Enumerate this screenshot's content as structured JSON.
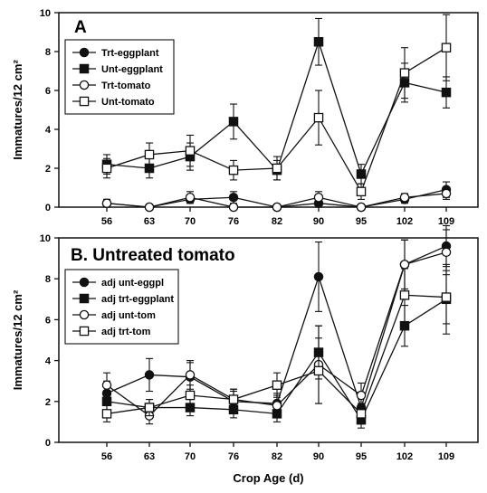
{
  "chart_data": [
    {
      "type": "line",
      "panel_label": "A",
      "ylabel": "Immatures/12 cm²",
      "ylim": [
        0,
        10
      ],
      "yticks": [
        0,
        2,
        4,
        6,
        8,
        10
      ],
      "x": [
        56,
        63,
        70,
        76,
        82,
        90,
        95,
        102,
        109
      ],
      "xtick_labels": [
        "56",
        "63",
        "70",
        "76",
        "82",
        "90",
        "95",
        "102",
        "109"
      ],
      "legend_position": "upper-left",
      "series": [
        {
          "name": "Trt-eggplant",
          "marker": "filled-circle",
          "values": [
            0.2,
            0.0,
            0.4,
            0.5,
            0.0,
            0.2,
            0.0,
            0.4,
            0.9
          ],
          "errors": [
            0.2,
            0.1,
            0.2,
            0.3,
            0.1,
            0.2,
            0.1,
            0.2,
            0.4
          ]
        },
        {
          "name": "Unt-eggplant",
          "marker": "filled-square",
          "values": [
            2.2,
            2.0,
            2.6,
            4.4,
            1.9,
            8.5,
            1.7,
            6.4,
            5.9
          ],
          "errors": [
            0.5,
            0.5,
            0.7,
            0.9,
            0.5,
            1.2,
            0.5,
            1.0,
            0.8
          ]
        },
        {
          "name": "Trt-tomato",
          "marker": "open-circle",
          "values": [
            0.2,
            0.0,
            0.5,
            0.0,
            0.0,
            0.5,
            0.0,
            0.5,
            0.7
          ],
          "errors": [
            0.2,
            0.1,
            0.3,
            0.1,
            0.1,
            0.3,
            0.1,
            0.2,
            0.3
          ]
        },
        {
          "name": "Unt-tomato",
          "marker": "open-square",
          "values": [
            2.0,
            2.7,
            2.9,
            1.9,
            2.0,
            4.6,
            0.8,
            6.9,
            8.2
          ],
          "errors": [
            0.5,
            0.6,
            0.8,
            0.5,
            0.6,
            1.4,
            0.4,
            1.3,
            1.7
          ]
        }
      ]
    },
    {
      "type": "line",
      "panel_label": "B. Untreated tomato",
      "ylabel": "Immatures/12 cm²",
      "xlabel": "Crop Age (d)",
      "ylim": [
        0,
        10
      ],
      "yticks": [
        0,
        2,
        4,
        6,
        8,
        10
      ],
      "x": [
        56,
        63,
        70,
        76,
        82,
        90,
        95,
        102,
        109
      ],
      "xtick_labels": [
        "56",
        "63",
        "70",
        "76",
        "82",
        "90",
        "95",
        "102",
        "109"
      ],
      "legend_position": "upper-left",
      "series": [
        {
          "name": "adj unt-eggpl",
          "marker": "filled-circle",
          "values": [
            2.4,
            3.3,
            3.2,
            2.0,
            1.9,
            8.1,
            1.7,
            8.7,
            9.6
          ],
          "errors": [
            0.6,
            0.8,
            0.7,
            0.5,
            0.5,
            1.7,
            0.5,
            1.2,
            1.0
          ]
        },
        {
          "name": "adj trt-eggplant",
          "marker": "filled-square",
          "values": [
            2.0,
            1.7,
            1.7,
            1.6,
            1.4,
            4.4,
            1.1,
            5.7,
            7.0
          ],
          "errors": [
            0.5,
            0.4,
            0.4,
            0.4,
            0.4,
            1.3,
            0.4,
            1.0,
            1.7
          ]
        },
        {
          "name": "adj unt-tom",
          "marker": "open-circle",
          "values": [
            2.8,
            1.3,
            3.3,
            2.1,
            1.8,
            3.8,
            2.3,
            8.7,
            9.3
          ],
          "errors": [
            0.6,
            0.4,
            0.7,
            0.5,
            0.5,
            1.9,
            0.6,
            1.2,
            1.1
          ]
        },
        {
          "name": "adj trt-tom",
          "marker": "open-square",
          "values": [
            1.4,
            1.7,
            2.3,
            2.1,
            2.8,
            3.5,
            1.4,
            7.2,
            7.1
          ],
          "errors": [
            0.4,
            0.4,
            0.5,
            0.5,
            0.6,
            1.6,
            0.5,
            1.3,
            1.3
          ]
        }
      ]
    }
  ]
}
